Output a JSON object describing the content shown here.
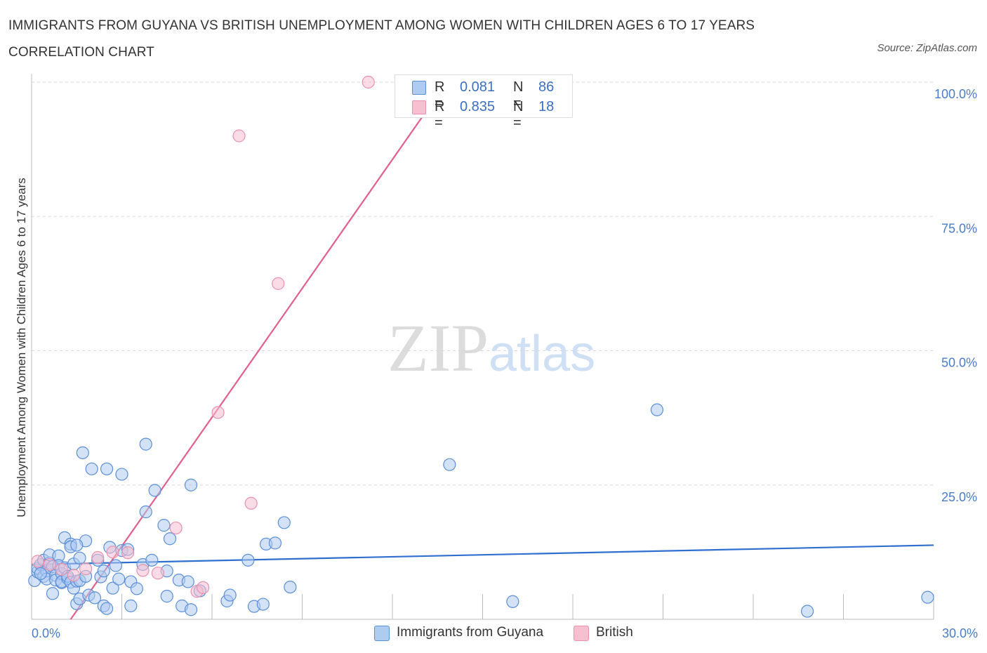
{
  "title": "IMMIGRANTS FROM GUYANA VS BRITISH UNEMPLOYMENT AMONG WOMEN WITH CHILDREN AGES 6 TO 17 YEARS CORRELATION CHART",
  "source": "Source: ZipAtlas.com",
  "watermark": {
    "zip": "ZIP",
    "atlas": "atlas"
  },
  "legend": {
    "rows": [
      {
        "r_label": "R =",
        "r_value": "0.081",
        "n_label": "N =",
        "n_value": "86",
        "color": "#aecbf0"
      },
      {
        "r_label": "R =",
        "r_value": "0.835",
        "n_label": "N =",
        "n_value": "18",
        "color": "#f7c0d1"
      }
    ]
  },
  "bottom_legend": [
    {
      "label": "Immigrants from Guyana",
      "color": "#aecbf0"
    },
    {
      "label": "British",
      "color": "#f7c0d1"
    }
  ],
  "chart_data": {
    "type": "scatter",
    "title": "IMMIGRANTS FROM GUYANA VS BRITISH UNEMPLOYMENT AMONG WOMEN WITH CHILDREN AGES 6 TO 17 YEARS CORRELATION CHART",
    "xlabel": "",
    "ylabel": "Unemployment Among Women with Children Ages 6 to 17 years",
    "xlim": [
      0,
      30
    ],
    "ylim": [
      0,
      100
    ],
    "x_tick_labels": [
      "0.0%",
      "30.0%"
    ],
    "y_tick_values": [
      25,
      50,
      75,
      100
    ],
    "y_tick_labels": [
      "25.0%",
      "50.0%",
      "75.0%",
      "100.0%"
    ],
    "grid": true,
    "series": [
      {
        "name": "Immigrants from Guyana",
        "color": "#5b8fd9",
        "fill": "#aecbf0",
        "trend": {
          "x": [
            0,
            30
          ],
          "y": [
            10.2,
            13.8
          ],
          "color": "#2f6fcf"
        },
        "points": [
          [
            0.1,
            7.2
          ],
          [
            0.2,
            8.8
          ],
          [
            0.2,
            9.5
          ],
          [
            0.3,
            10.2
          ],
          [
            0.4,
            11.0
          ],
          [
            0.4,
            8.0
          ],
          [
            0.5,
            9.0
          ],
          [
            0.5,
            7.5
          ],
          [
            0.6,
            10.5
          ],
          [
            0.6,
            12.0
          ],
          [
            0.7,
            4.8
          ],
          [
            0.7,
            9.8
          ],
          [
            0.8,
            8.2
          ],
          [
            0.8,
            7.3
          ],
          [
            0.9,
            11.8
          ],
          [
            0.9,
            10.0
          ],
          [
            1.0,
            6.8
          ],
          [
            1.0,
            8.5
          ],
          [
            1.0,
            7.0
          ],
          [
            1.1,
            15.2
          ],
          [
            1.1,
            9.6
          ],
          [
            1.2,
            7.6
          ],
          [
            1.2,
            8.0
          ],
          [
            1.3,
            14.0
          ],
          [
            1.3,
            13.5
          ],
          [
            1.3,
            6.9
          ],
          [
            1.4,
            10.3
          ],
          [
            1.4,
            5.8
          ],
          [
            1.5,
            2.9
          ],
          [
            1.5,
            7.1
          ],
          [
            1.6,
            3.8
          ],
          [
            1.6,
            11.4
          ],
          [
            1.6,
            7.2
          ],
          [
            1.7,
            31.0
          ],
          [
            1.8,
            14.6
          ],
          [
            1.8,
            8.0
          ],
          [
            1.9,
            4.5
          ],
          [
            2.0,
            28.0
          ],
          [
            2.1,
            4.0
          ],
          [
            2.2,
            11.0
          ],
          [
            2.3,
            7.9
          ],
          [
            2.4,
            9.0
          ],
          [
            2.4,
            2.5
          ],
          [
            2.5,
            2.0
          ],
          [
            2.5,
            28.0
          ],
          [
            2.6,
            13.4
          ],
          [
            2.7,
            5.8
          ],
          [
            2.8,
            10.0
          ],
          [
            2.9,
            7.5
          ],
          [
            3.0,
            27.0
          ],
          [
            3.0,
            12.8
          ],
          [
            3.2,
            13.0
          ],
          [
            3.3,
            7.0
          ],
          [
            3.3,
            2.5
          ],
          [
            3.5,
            5.7
          ],
          [
            3.7,
            10.2
          ],
          [
            3.8,
            32.6
          ],
          [
            3.8,
            20.0
          ],
          [
            4.0,
            11.0
          ],
          [
            4.1,
            24.0
          ],
          [
            4.4,
            17.5
          ],
          [
            4.5,
            4.3
          ],
          [
            4.5,
            9.0
          ],
          [
            4.6,
            15.0
          ],
          [
            4.9,
            7.3
          ],
          [
            5.0,
            2.5
          ],
          [
            5.2,
            7.0
          ],
          [
            5.3,
            25.0
          ],
          [
            5.3,
            1.8
          ],
          [
            5.6,
            5.3
          ],
          [
            6.5,
            3.4
          ],
          [
            6.6,
            4.5
          ],
          [
            7.2,
            11.0
          ],
          [
            7.4,
            2.4
          ],
          [
            7.7,
            2.8
          ],
          [
            7.8,
            14.0
          ],
          [
            8.1,
            14.2
          ],
          [
            8.4,
            18.0
          ],
          [
            8.6,
            6.0
          ],
          [
            13.9,
            28.8
          ],
          [
            16.0,
            3.3
          ],
          [
            20.8,
            39.0
          ],
          [
            25.8,
            1.5
          ],
          [
            29.8,
            4.1
          ],
          [
            0.3,
            8.5
          ],
          [
            1.5,
            13.8
          ]
        ]
      },
      {
        "name": "British",
        "color": "#e891ad",
        "fill": "#f7c0d1",
        "trend": {
          "x": [
            1.3,
            13.8
          ],
          "y": [
            0,
            100
          ],
          "color": "#e0608a"
        },
        "points": [
          [
            0.2,
            10.8
          ],
          [
            0.6,
            10.2
          ],
          [
            1.0,
            9.3
          ],
          [
            1.4,
            8.2
          ],
          [
            1.8,
            9.4
          ],
          [
            2.2,
            11.5
          ],
          [
            2.7,
            12.5
          ],
          [
            3.2,
            12.4
          ],
          [
            3.7,
            9.1
          ],
          [
            4.2,
            8.6
          ],
          [
            4.8,
            17.0
          ],
          [
            5.5,
            5.2
          ],
          [
            5.7,
            5.9
          ],
          [
            6.2,
            38.5
          ],
          [
            6.9,
            90.0
          ],
          [
            7.3,
            21.6
          ],
          [
            8.2,
            62.5
          ],
          [
            11.2,
            100.0
          ]
        ]
      }
    ]
  }
}
